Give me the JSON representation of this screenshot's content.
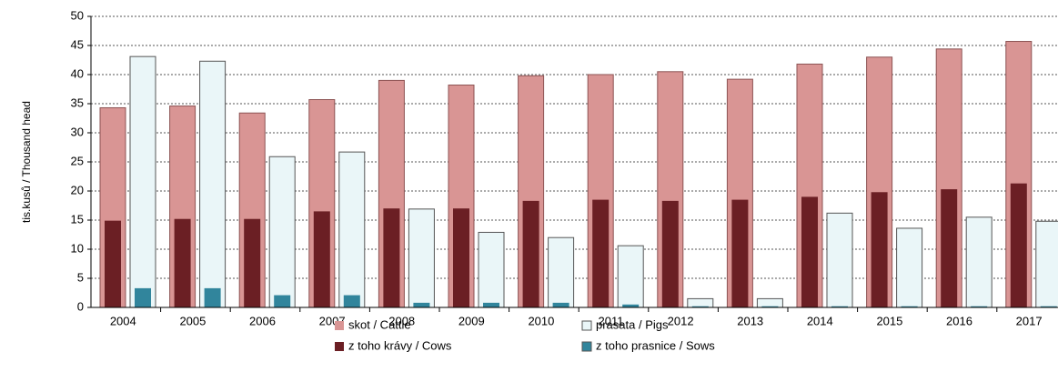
{
  "chart_data": {
    "type": "bar",
    "y_label": "tis.kusů / Thousand head",
    "categories": [
      "2004",
      "2005",
      "2006",
      "2007",
      "2008",
      "2009",
      "2010",
      "2011",
      "2012",
      "2013",
      "2014",
      "2015",
      "2016",
      "2017"
    ],
    "series": [
      {
        "name": "skot / Cattle",
        "color": "#d99594",
        "values": [
          34.3,
          34.6,
          33.4,
          35.7,
          39.0,
          38.2,
          39.8,
          40.0,
          40.5,
          39.2,
          41.8,
          43.0,
          44.4,
          45.7
        ]
      },
      {
        "name": "prasata / Pigs",
        "color": "#eaf6f8",
        "values": [
          43.1,
          42.3,
          25.9,
          26.7,
          16.9,
          12.9,
          12.0,
          10.6,
          1.5,
          1.5,
          16.2,
          13.6,
          15.5,
          14.8
        ]
      },
      {
        "name": "z toho krávy / Cows",
        "color": "#6b1f24",
        "values": [
          14.9,
          15.2,
          15.2,
          16.5,
          17.0,
          17.0,
          18.3,
          18.5,
          18.3,
          18.5,
          19.0,
          19.8,
          20.3,
          21.3
        ]
      },
      {
        "name": "z toho prasnice / Sows",
        "color": "#31859c",
        "values": [
          3.3,
          3.3,
          2.1,
          2.1,
          0.8,
          0.8,
          0.8,
          0.5,
          0.2,
          0.2,
          0.2,
          0.2,
          0.2,
          0.2
        ]
      }
    ],
    "ylim": [
      0,
      50
    ],
    "yticks": [
      0,
      5,
      10,
      15,
      20,
      25,
      30,
      35,
      40,
      45,
      50
    ],
    "grid": true
  }
}
